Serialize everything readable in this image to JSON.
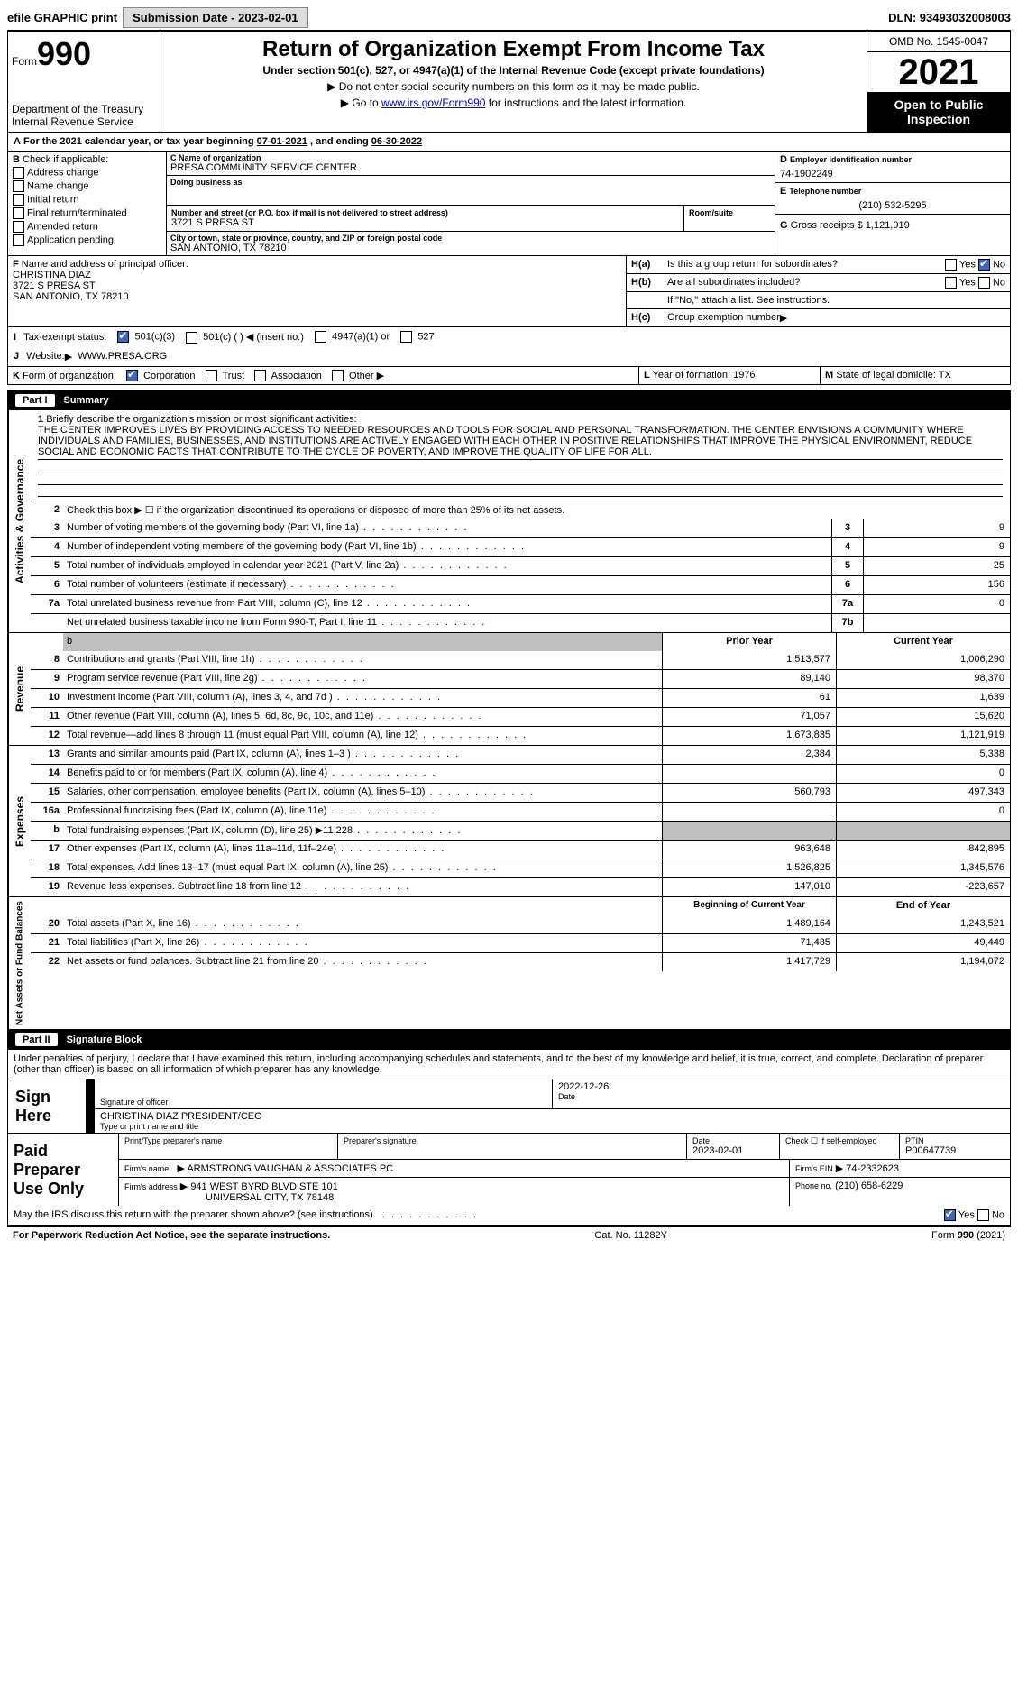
{
  "topbar": {
    "efile": "efile GRAPHIC print",
    "submission_label": "Submission Date - 2023-02-01",
    "dln": "DLN: 93493032008003"
  },
  "header": {
    "form_word": "Form",
    "form_number": "990",
    "title": "Return of Organization Exempt From Income Tax",
    "subtitle": "Under section 501(c), 527, or 4947(a)(1) of the Internal Revenue Code (except private foundations)",
    "note1": "Do not enter social security numbers on this form as it may be made public.",
    "note2_prefix": "Go to ",
    "note2_link": "www.irs.gov/Form990",
    "note2_suffix": " for instructions and the latest information.",
    "dept": "Department of the Treasury\nInternal Revenue Service",
    "omb": "OMB No. 1545-0047",
    "tax_year": "2021",
    "open": "Open to Public Inspection"
  },
  "A": {
    "text_prefix": "For the 2021 calendar year, or tax year beginning ",
    "begin": "07-01-2021",
    "mid": " , and ending ",
    "end": "06-30-2022"
  },
  "B": {
    "label": "Check if applicable:",
    "items": [
      "Address change",
      "Name change",
      "Initial return",
      "Final return/terminated",
      "Amended return",
      "Application pending"
    ]
  },
  "C": {
    "name_label": "Name of organization",
    "name": "PRESA COMMUNITY SERVICE CENTER",
    "dba_label": "Doing business as",
    "dba": "",
    "street_label": "Number and street (or P.O. box if mail is not delivered to street address)",
    "room_label": "Room/suite",
    "street": "3721 S PRESA ST",
    "city_label": "City or town, state or province, country, and ZIP or foreign postal code",
    "city": "SAN ANTONIO, TX  78210"
  },
  "D": {
    "label": "Employer identification number",
    "value": "74-1902249"
  },
  "E": {
    "label": "Telephone number",
    "value": "(210) 532-5295"
  },
  "G": {
    "label": "Gross receipts $",
    "value": "1,121,919"
  },
  "F": {
    "label": "Name and address of principal officer:",
    "name": "CHRISTINA DIAZ",
    "street": "3721 S PRESA ST",
    "city": "SAN ANTONIO, TX  78210"
  },
  "H": {
    "a": "Is this a group return for subordinates?",
    "a_yes": false,
    "a_no": true,
    "b": "Are all subordinates included?",
    "b_note": "If \"No,\" attach a list. See instructions.",
    "c": "Group exemption number"
  },
  "I": {
    "label": "Tax-exempt status:",
    "opts": [
      "501(c)(3)",
      "501(c) (  ) ◀ (insert no.)",
      "4947(a)(1) or",
      "527"
    ]
  },
  "J": {
    "label": "Website:",
    "value": "WWW.PRESA.ORG"
  },
  "K": {
    "label": "Form of organization:",
    "opts": [
      "Corporation",
      "Trust",
      "Association",
      "Other"
    ]
  },
  "L": {
    "label": "Year of formation:",
    "value": "1976"
  },
  "M": {
    "label": "State of legal domicile:",
    "value": "TX"
  },
  "partI": {
    "title": "Summary",
    "mission_label": "Briefly describe the organization's mission or most significant activities:",
    "mission": "THE CENTER IMPROVES LIVES BY PROVIDING ACCESS TO NEEDED RESOURCES AND TOOLS FOR SOCIAL AND PERSONAL TRANSFORMATION. THE CENTER ENVISIONS A COMMUNITY WHERE INDIVIDUALS AND FAMILIES, BUSINESSES, AND INSTITUTIONS ARE ACTIVELY ENGAGED WITH EACH OTHER IN POSITIVE RELATIONSHIPS THAT IMPROVE THE PHYSICAL ENVIRONMENT, REDUCE SOCIAL AND ECONOMIC FACTS THAT CONTRIBUTE TO THE CYCLE OF POVERTY, AND IMPROVE THE QUALITY OF LIFE FOR ALL.",
    "line2": "Check this box ▶ ☐ if the organization discontinued its operations or disposed of more than 25% of its net assets.",
    "governance": [
      {
        "n": "3",
        "t": "Number of voting members of the governing body (Part VI, line 1a)",
        "bn": "3",
        "v": "9"
      },
      {
        "n": "4",
        "t": "Number of independent voting members of the governing body (Part VI, line 1b)",
        "bn": "4",
        "v": "9"
      },
      {
        "n": "5",
        "t": "Total number of individuals employed in calendar year 2021 (Part V, line 2a)",
        "bn": "5",
        "v": "25"
      },
      {
        "n": "6",
        "t": "Total number of volunteers (estimate if necessary)",
        "bn": "6",
        "v": "156"
      },
      {
        "n": "7a",
        "t": "Total unrelated business revenue from Part VIII, column (C), line 12",
        "bn": "7a",
        "v": "0"
      },
      {
        "n": "",
        "t": "Net unrelated business taxable income from Form 990-T, Part I, line 11",
        "bn": "7b",
        "v": ""
      }
    ],
    "col_prior": "Prior Year",
    "col_current": "Current Year",
    "revenue": [
      {
        "n": "8",
        "t": "Contributions and grants (Part VIII, line 1h)",
        "p": "1,513,577",
        "c": "1,006,290"
      },
      {
        "n": "9",
        "t": "Program service revenue (Part VIII, line 2g)",
        "p": "89,140",
        "c": "98,370"
      },
      {
        "n": "10",
        "t": "Investment income (Part VIII, column (A), lines 3, 4, and 7d )",
        "p": "61",
        "c": "1,639"
      },
      {
        "n": "11",
        "t": "Other revenue (Part VIII, column (A), lines 5, 6d, 8c, 9c, 10c, and 11e)",
        "p": "71,057",
        "c": "15,620"
      },
      {
        "n": "12",
        "t": "Total revenue—add lines 8 through 11 (must equal Part VIII, column (A), line 12)",
        "p": "1,673,835",
        "c": "1,121,919"
      }
    ],
    "expenses": [
      {
        "n": "13",
        "t": "Grants and similar amounts paid (Part IX, column (A), lines 1–3 )",
        "p": "2,384",
        "c": "5,338"
      },
      {
        "n": "14",
        "t": "Benefits paid to or for members (Part IX, column (A), line 4)",
        "p": "",
        "c": "0"
      },
      {
        "n": "15",
        "t": "Salaries, other compensation, employee benefits (Part IX, column (A), lines 5–10)",
        "p": "560,793",
        "c": "497,343"
      },
      {
        "n": "16a",
        "t": "Professional fundraising fees (Part IX, column (A), line 11e)",
        "p": "",
        "c": "0"
      },
      {
        "n": "b",
        "t": "Total fundraising expenses (Part IX, column (D), line 25) ▶11,228",
        "p": "SHADE",
        "c": "SHADE"
      },
      {
        "n": "17",
        "t": "Other expenses (Part IX, column (A), lines 11a–11d, 11f–24e)",
        "p": "963,648",
        "c": "842,895"
      },
      {
        "n": "18",
        "t": "Total expenses. Add lines 13–17 (must equal Part IX, column (A), line 25)",
        "p": "1,526,825",
        "c": "1,345,576"
      },
      {
        "n": "19",
        "t": "Revenue less expenses. Subtract line 18 from line 12",
        "p": "147,010",
        "c": "-223,657"
      }
    ],
    "col_begin": "Beginning of Current Year",
    "col_end": "End of Year",
    "netassets": [
      {
        "n": "20",
        "t": "Total assets (Part X, line 16)",
        "p": "1,489,164",
        "c": "1,243,521"
      },
      {
        "n": "21",
        "t": "Total liabilities (Part X, line 26)",
        "p": "71,435",
        "c": "49,449"
      },
      {
        "n": "22",
        "t": "Net assets or fund balances. Subtract line 21 from line 20",
        "p": "1,417,729",
        "c": "1,194,072"
      }
    ],
    "strips": {
      "gov": "Activities & Governance",
      "rev": "Revenue",
      "exp": "Expenses",
      "net": "Net Assets or Fund Balances"
    }
  },
  "partII": {
    "title": "Signature Block",
    "penalty": "Under penalties of perjury, I declare that I have examined this return, including accompanying schedules and statements, and to the best of my knowledge and belief, it is true, correct, and complete. Declaration of preparer (other than officer) is based on all information of which preparer has any knowledge.",
    "sign_here": "Sign Here",
    "sig_officer": "Signature of officer",
    "sig_date": "2022-12-26",
    "date_label": "Date",
    "officer_name": "CHRISTINA DIAZ  PRESIDENT/CEO",
    "type_name": "Type or print name and title",
    "paid": "Paid Preparer Use Only",
    "p_name_label": "Print/Type preparer's name",
    "p_sig_label": "Preparer's signature",
    "p_date_label": "Date",
    "p_date": "2023-02-01",
    "p_check_label": "Check ☐ if self-employed",
    "ptin_label": "PTIN",
    "ptin": "P00647739",
    "firm_name_label": "Firm's name",
    "firm_name": "ARMSTRONG VAUGHAN & ASSOCIATES PC",
    "firm_ein_label": "Firm's EIN",
    "firm_ein": "74-2332623",
    "firm_addr_label": "Firm's address",
    "firm_addr1": "941 WEST BYRD BLVD STE 101",
    "firm_addr2": "UNIVERSAL CITY, TX  78148",
    "phone_label": "Phone no.",
    "phone": "(210) 658-6229",
    "discuss": "May the IRS discuss this return with the preparer shown above? (see instructions)",
    "discuss_yes": true
  },
  "footer": {
    "pra": "For Paperwork Reduction Act Notice, see the separate instructions.",
    "cat": "Cat. No. 11282Y",
    "form": "Form 990 (2021)"
  },
  "colors": {
    "check_blue": "#3a66c4",
    "shade_grey": "#bfbfbf",
    "link_blue": "#0000cc"
  }
}
